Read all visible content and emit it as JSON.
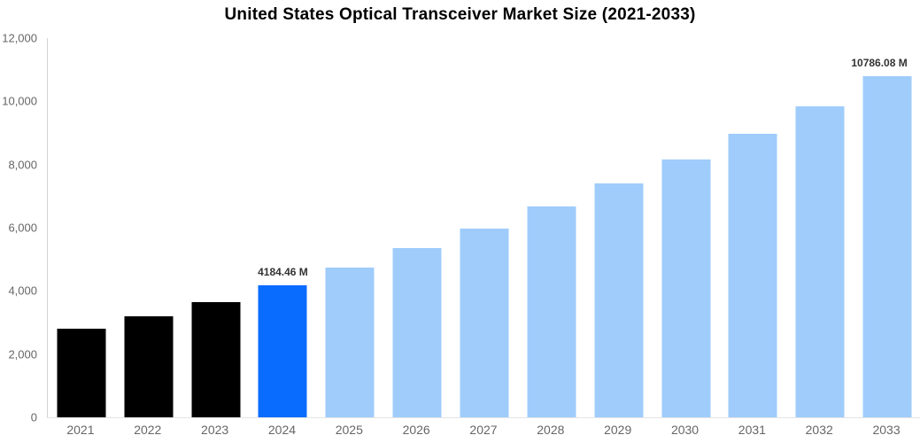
{
  "title": "United States Optical Transceiver Market Size (2021-2033)",
  "colors": {
    "historical": "#000000",
    "highlight": "#0a6cff",
    "forecast": "#9fccfb",
    "axis_line": "#d4d4d4",
    "axis_text": "#666666",
    "data_label_text": "#333333"
  },
  "chart_data": {
    "type": "bar",
    "title": "United States Optical Transceiver Market Size (2021-2033)",
    "xlabel": "",
    "ylabel": "",
    "ylim": [
      0,
      12000
    ],
    "grid": false,
    "legend": false,
    "categories": [
      "2021",
      "2022",
      "2023",
      "2024",
      "2025",
      "2026",
      "2027",
      "2028",
      "2029",
      "2030",
      "2031",
      "2032",
      "2033"
    ],
    "values": [
      2800,
      3200,
      3650,
      4184.46,
      4750,
      5360,
      5970,
      6670,
      7400,
      8170,
      8980,
      9850,
      10786.08
    ],
    "bar_roles": [
      "historical",
      "historical",
      "historical",
      "highlight",
      "forecast",
      "forecast",
      "forecast",
      "forecast",
      "forecast",
      "forecast",
      "forecast",
      "forecast",
      "forecast"
    ],
    "bar_labels": [
      "",
      "",
      "",
      "4184.46 M",
      "",
      "",
      "",
      "",
      "",
      "",
      "",
      "",
      "10786.08 M"
    ],
    "yticks": [
      {
        "value": 0,
        "label": "0"
      },
      {
        "value": 2000,
        "label": "2,000"
      },
      {
        "value": 4000,
        "label": "4,000"
      },
      {
        "value": 6000,
        "label": "6,000"
      },
      {
        "value": 8000,
        "label": "8,000"
      },
      {
        "value": 10000,
        "label": "10,000"
      },
      {
        "value": 12000,
        "label": "12,000"
      }
    ]
  }
}
